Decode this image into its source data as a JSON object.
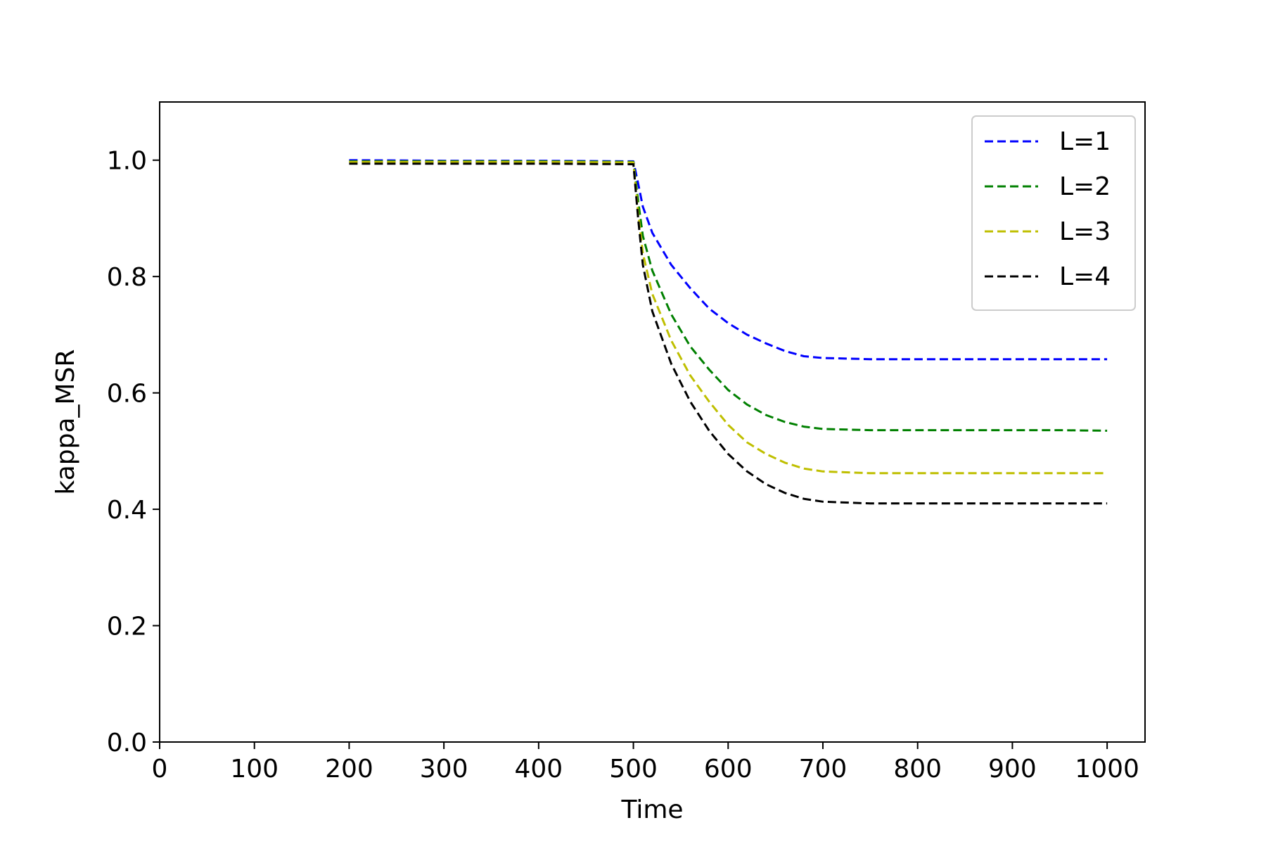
{
  "chart_data": {
    "type": "line",
    "title": "",
    "xlabel": "Time",
    "ylabel": "kappa_MSR",
    "xlim": [
      0,
      1040
    ],
    "ylim": [
      0,
      1.1
    ],
    "xticks": [
      0,
      100,
      200,
      300,
      400,
      500,
      600,
      700,
      800,
      900,
      1000
    ],
    "xtick_labels": [
      "0",
      "100",
      "200",
      "300",
      "400",
      "500",
      "600",
      "700",
      "800",
      "900",
      "1000"
    ],
    "yticks": [
      0.0,
      0.2,
      0.4,
      0.6,
      0.8,
      1.0
    ],
    "ytick_labels": [
      "0.0",
      "0.2",
      "0.4",
      "0.6",
      "0.8",
      "1.0"
    ],
    "grid": false,
    "legend_position": "top-right",
    "line_style": "dashed",
    "series": [
      {
        "name": "L=1",
        "color": "#0000ff",
        "x": [
          200,
          300,
          400,
          500,
          505,
          510,
          520,
          540,
          560,
          580,
          600,
          620,
          640,
          660,
          680,
          700,
          750,
          800,
          850,
          900,
          950,
          1000
        ],
        "y": [
          1.0,
          0.999,
          0.999,
          0.998,
          0.96,
          0.92,
          0.875,
          0.82,
          0.78,
          0.745,
          0.72,
          0.7,
          0.685,
          0.672,
          0.663,
          0.66,
          0.658,
          0.658,
          0.658,
          0.658,
          0.658,
          0.658
        ]
      },
      {
        "name": "L=2",
        "color": "#008000",
        "x": [
          200,
          300,
          400,
          500,
          505,
          510,
          520,
          540,
          560,
          580,
          600,
          620,
          640,
          660,
          680,
          700,
          750,
          800,
          850,
          900,
          950,
          1000
        ],
        "y": [
          0.998,
          0.998,
          0.998,
          0.997,
          0.93,
          0.87,
          0.81,
          0.735,
          0.68,
          0.64,
          0.605,
          0.58,
          0.562,
          0.55,
          0.542,
          0.538,
          0.536,
          0.536,
          0.536,
          0.536,
          0.536,
          0.535
        ]
      },
      {
        "name": "L=3",
        "color": "#bfbf00",
        "x": [
          200,
          300,
          400,
          500,
          505,
          510,
          520,
          540,
          560,
          580,
          600,
          620,
          640,
          660,
          680,
          700,
          750,
          800,
          850,
          900,
          950,
          1000
        ],
        "y": [
          0.997,
          0.997,
          0.997,
          0.996,
          0.91,
          0.84,
          0.77,
          0.69,
          0.63,
          0.585,
          0.545,
          0.515,
          0.495,
          0.48,
          0.47,
          0.465,
          0.462,
          0.462,
          0.462,
          0.462,
          0.462,
          0.462
        ]
      },
      {
        "name": "L=4",
        "color": "#000000",
        "x": [
          200,
          300,
          400,
          500,
          505,
          510,
          520,
          540,
          560,
          580,
          600,
          620,
          640,
          660,
          680,
          700,
          750,
          800,
          850,
          900,
          950,
          1000
        ],
        "y": [
          0.994,
          0.994,
          0.994,
          0.993,
          0.9,
          0.82,
          0.74,
          0.65,
          0.585,
          0.535,
          0.495,
          0.465,
          0.443,
          0.428,
          0.418,
          0.413,
          0.41,
          0.41,
          0.41,
          0.41,
          0.41,
          0.41
        ]
      }
    ]
  }
}
